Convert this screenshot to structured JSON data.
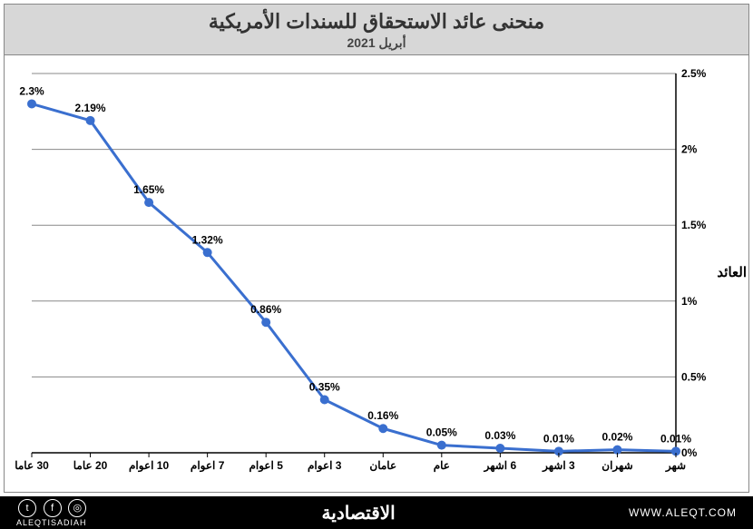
{
  "title": "منحنى عائد الاستحقاق للسندات الأمريكية",
  "subtitle": "أبريل 2021",
  "y_axis_label": "العائد",
  "footer": {
    "brand": "الاقتصادية",
    "site": "WWW.ALEQT.COM",
    "site_alt": "ALEQTISADIAH"
  },
  "chart": {
    "type": "line",
    "ylim": [
      0,
      2.5
    ],
    "ytick_step": 0.5,
    "yticks": [
      "0%",
      "0.5%",
      "1%",
      "1.5%",
      "2%",
      "2.5%"
    ],
    "categories": [
      "شهر",
      "شهران",
      "3 اشهر",
      "6 اشهر",
      "عام",
      "عامان",
      "3 اعوام",
      "5 اعوام",
      "7 اعوام",
      "10 اعوام",
      "20 عاما",
      "30 عاما"
    ],
    "values": [
      0.01,
      0.02,
      0.01,
      0.03,
      0.05,
      0.16,
      0.35,
      0.86,
      1.32,
      1.65,
      2.19,
      2.3
    ],
    "value_labels": [
      "0.01%",
      "0.02%",
      "0.01%",
      "0.03%",
      "0.05%",
      "0.16%",
      "0.35%",
      "0.86%",
      "1.32%",
      "1.65%",
      "2.19%",
      "2.3%"
    ],
    "line_color": "#3a6fcf",
    "marker_color": "#3a6fcf",
    "line_width": 3,
    "marker_radius": 5,
    "grid_color": "#888888",
    "axis_color": "#000000",
    "background_color": "#ffffff",
    "label_fontsize": 12
  }
}
